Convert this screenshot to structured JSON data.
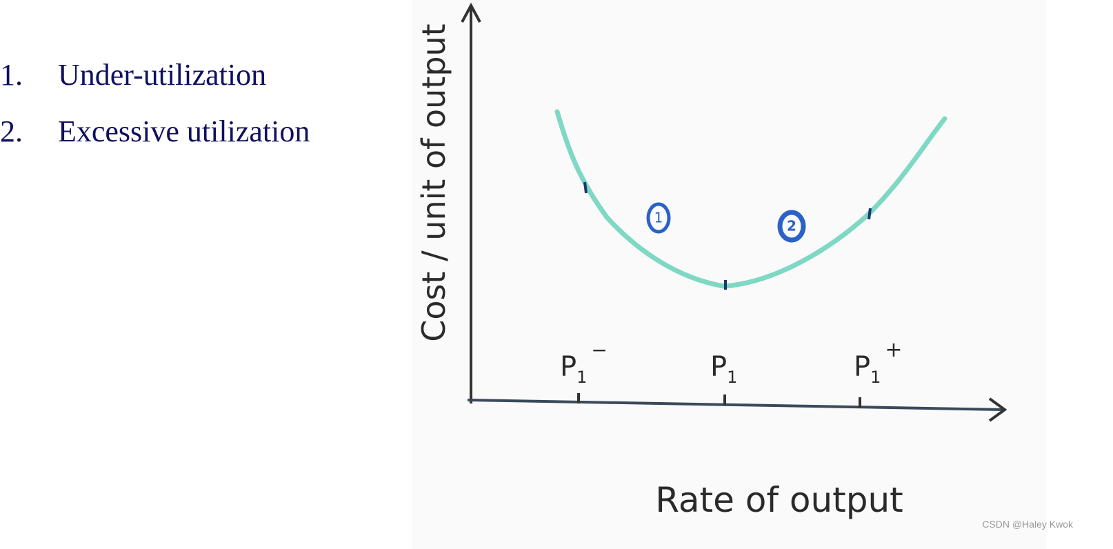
{
  "list": [
    {
      "number": "1.",
      "text": "Under-utilization"
    },
    {
      "number": "2.",
      "text": "Excessive utilization"
    }
  ],
  "diagram": {
    "y_axis_label": "Cost / unit of output",
    "x_axis_label": "Rate of output",
    "ticks": [
      {
        "base": "P",
        "sub": "1",
        "sup": "−"
      },
      {
        "base": "P",
        "sub": "1",
        "sup": ""
      },
      {
        "base": "P",
        "sub": "1",
        "sup": "+"
      }
    ],
    "regions": [
      "1",
      "2"
    ]
  },
  "watermark": "CSDN @Haley Kwok"
}
